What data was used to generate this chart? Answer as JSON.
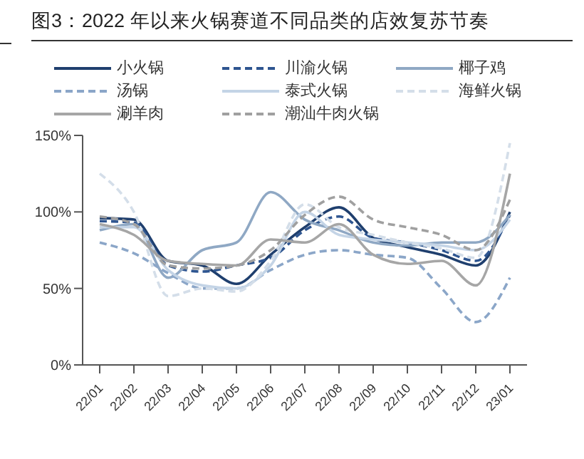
{
  "chart_data": {
    "type": "line",
    "title": "图3：2022 年以来火锅赛道不同品类的店效复苏节奏",
    "categories": [
      "22/01",
      "22/02",
      "22/03",
      "22/04",
      "22/05",
      "22/06",
      "22/07",
      "22/08",
      "22/09",
      "22/10",
      "22/11",
      "22/12",
      "23/01"
    ],
    "ylim": [
      0,
      150
    ],
    "yticks": [
      {
        "value": 0,
        "label": "0%"
      },
      {
        "value": 50,
        "label": "50%"
      },
      {
        "value": 100,
        "label": "100%"
      },
      {
        "value": 150,
        "label": "150%"
      }
    ],
    "grid": false,
    "legend": "top",
    "marker": "none",
    "series": [
      {
        "name": "小火锅",
        "color": "#1f3f6e",
        "line_style": "solid",
        "values": [
          96,
          95,
          68,
          65,
          53,
          72,
          90,
          103,
          83,
          77,
          72,
          65,
          100
        ]
      },
      {
        "name": "川渝火锅",
        "color": "#2e5590",
        "line_style": "dashed",
        "values": [
          94,
          93,
          65,
          61,
          65,
          70,
          88,
          97,
          83,
          80,
          75,
          68,
          98
        ]
      },
      {
        "name": "椰子鸡",
        "color": "#8fa8c4",
        "line_style": "solid",
        "values": [
          88,
          92,
          57,
          75,
          80,
          113,
          95,
          88,
          80,
          78,
          80,
          80,
          98
        ]
      },
      {
        "name": "汤锅",
        "color": "#8ba6c8",
        "line_style": "dashed",
        "values": [
          80,
          73,
          60,
          50,
          50,
          62,
          72,
          75,
          72,
          70,
          50,
          28,
          57
        ]
      },
      {
        "name": "泰式火锅",
        "color": "#c4d4e6",
        "line_style": "solid",
        "values": [
          90,
          90,
          62,
          52,
          50,
          65,
          100,
          85,
          82,
          80,
          78,
          75,
          95
        ]
      },
      {
        "name": "海鲜火锅",
        "color": "#d4dee9",
        "line_style": "dashed",
        "values": [
          125,
          100,
          45,
          50,
          48,
          68,
          105,
          90,
          85,
          80,
          76,
          70,
          145
        ]
      },
      {
        "name": "涮羊肉",
        "color": "#a6a6a6",
        "line_style": "solid",
        "values": [
          92,
          85,
          68,
          66,
          65,
          82,
          80,
          92,
          72,
          66,
          68,
          52,
          125
        ]
      },
      {
        "name": "潮汕牛肉火锅",
        "color": "#a0a0a0",
        "line_style": "dashed",
        "values": [
          97,
          92,
          65,
          63,
          65,
          75,
          98,
          110,
          95,
          90,
          85,
          75,
          108
        ]
      }
    ]
  }
}
